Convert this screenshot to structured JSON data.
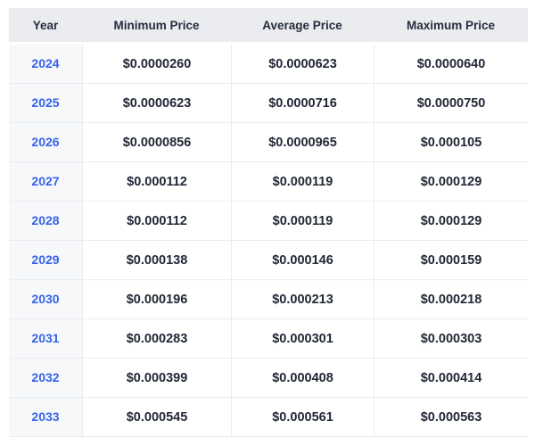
{
  "table": {
    "headers": [
      "Year",
      "Minimum Price",
      "Average Price",
      "Maximum Price"
    ],
    "rows": [
      {
        "year": "2024",
        "min": "$0.0000260",
        "avg": "$0.0000623",
        "max": "$0.0000640"
      },
      {
        "year": "2025",
        "min": "$0.0000623",
        "avg": "$0.0000716",
        "max": "$0.0000750"
      },
      {
        "year": "2026",
        "min": "$0.0000856",
        "avg": "$0.0000965",
        "max": "$0.000105"
      },
      {
        "year": "2027",
        "min": "$0.000112",
        "avg": "$0.000119",
        "max": "$0.000129"
      },
      {
        "year": "2028",
        "min": "$0.000112",
        "avg": "$0.000119",
        "max": "$0.000129"
      },
      {
        "year": "2029",
        "min": "$0.000138",
        "avg": "$0.000146",
        "max": "$0.000159"
      },
      {
        "year": "2030",
        "min": "$0.000196",
        "avg": "$0.000213",
        "max": "$0.000218"
      },
      {
        "year": "2031",
        "min": "$0.000283",
        "avg": "$0.000301",
        "max": "$0.000303"
      },
      {
        "year": "2032",
        "min": "$0.000399",
        "avg": "$0.000408",
        "max": "$0.000414"
      },
      {
        "year": "2033",
        "min": "$0.000545",
        "avg": "$0.000561",
        "max": "$0.000563"
      }
    ]
  },
  "chart_data": {
    "type": "table",
    "title": "",
    "columns": [
      "Year",
      "Minimum Price",
      "Average Price",
      "Maximum Price"
    ],
    "rows": [
      [
        "2024",
        "$0.0000260",
        "$0.0000623",
        "$0.0000640"
      ],
      [
        "2025",
        "$0.0000623",
        "$0.0000716",
        "$0.0000750"
      ],
      [
        "2026",
        "$0.0000856",
        "$0.0000965",
        "$0.000105"
      ],
      [
        "2027",
        "$0.000112",
        "$0.000119",
        "$0.000129"
      ],
      [
        "2028",
        "$0.000112",
        "$0.000119",
        "$0.000129"
      ],
      [
        "2029",
        "$0.000138",
        "$0.000146",
        "$0.000159"
      ],
      [
        "2030",
        "$0.000196",
        "$0.000213",
        "$0.000218"
      ],
      [
        "2031",
        "$0.000283",
        "$0.000301",
        "$0.000303"
      ],
      [
        "2032",
        "$0.000399",
        "$0.000408",
        "$0.000414"
      ],
      [
        "2033",
        "$0.000545",
        "$0.000561",
        "$0.000563"
      ]
    ],
    "numeric_series": {
      "years": [
        2024,
        2025,
        2026,
        2027,
        2028,
        2029,
        2030,
        2031,
        2032,
        2033
      ],
      "minimum_price_usd": [
        2.6e-05,
        6.23e-05,
        8.56e-05,
        0.000112,
        0.000112,
        0.000138,
        0.000196,
        0.000283,
        0.000399,
        0.000545
      ],
      "average_price_usd": [
        6.23e-05,
        7.16e-05,
        9.65e-05,
        0.000119,
        0.000119,
        0.000146,
        0.000213,
        0.000301,
        0.000408,
        0.000561
      ],
      "maximum_price_usd": [
        6.4e-05,
        7.5e-05,
        0.000105,
        0.000129,
        0.000129,
        0.000159,
        0.000218,
        0.000303,
        0.000414,
        0.000563
      ]
    }
  },
  "colors": {
    "header_background": "#eaecef",
    "year_column_background": "#f7f8fa",
    "row_border": "#e9ecf0",
    "year_link_blue": "#3563e9",
    "price_text": "#222836",
    "header_text": "#252e3f",
    "page_background": "#ffffff"
  }
}
